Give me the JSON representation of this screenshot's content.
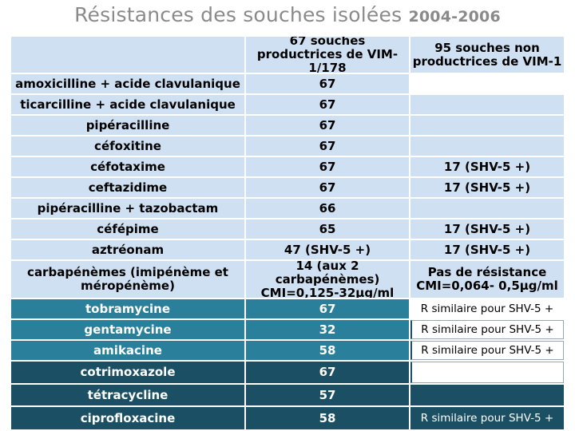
{
  "title": "Résistances des souches isolées",
  "title_years": "2004-2006",
  "headers": {
    "col1": "67 souches productrices de VIM-1/178",
    "col2": "95 souches non productrices de VIM-1"
  },
  "rows": [
    {
      "antibiotic": "amoxicilline + acide clavulanique",
      "vim": "67",
      "non_vim": ""
    },
    {
      "antibiotic": "ticarcilline + acide clavulanique",
      "vim": "67",
      "non_vim": ""
    },
    {
      "antibiotic": "pipéracilline",
      "vim": "67",
      "non_vim": ""
    },
    {
      "antibiotic": "céfoxitine",
      "vim": "67",
      "non_vim": ""
    },
    {
      "antibiotic": "céfotaxime",
      "vim": "67",
      "non_vim": "17 (SHV-5 +)"
    },
    {
      "antibiotic": "ceftazidime",
      "vim": "67",
      "non_vim": "17 (SHV-5 +)"
    },
    {
      "antibiotic": "pipéracilline + tazobactam",
      "vim": "66",
      "non_vim": ""
    },
    {
      "antibiotic": "céfépime",
      "vim": "65",
      "non_vim": "17 (SHV-5 +)"
    },
    {
      "antibiotic": "aztréonam",
      "vim": "47 (SHV-5 +)",
      "non_vim": "17 (SHV-5 +)"
    },
    {
      "antibiotic": "carbapénèmes (imipénème et méropénème)",
      "vim": "14 (aux 2 carbapénèmes) CMI=0,125-32µg/ml",
      "non_vim": "Pas de résistance CMI=0,064- 0,5µg/ml"
    },
    {
      "antibiotic": "tobramycine",
      "vim": "67",
      "non_vim": "R similaire pour SHV-5 +"
    },
    {
      "antibiotic": "gentamycine",
      "vim": "32",
      "non_vim": "R similaire pour SHV-5 +"
    },
    {
      "antibiotic": "amikacine",
      "vim": "58",
      "non_vim": "R similaire pour SHV-5 +"
    },
    {
      "antibiotic": "cotrimoxazole",
      "vim": "67",
      "non_vim": ""
    },
    {
      "antibiotic": "tétracycline",
      "vim": "57",
      "non_vim": ""
    },
    {
      "antibiotic": "ciprofloxacine",
      "vim": "58",
      "non_vim": "R similaire pour SHV-5 +"
    }
  ],
  "colors": {
    "header": "#cfe0f2",
    "light_rows": "#cfe0f2",
    "aminoside_rows": "#2a7f9a",
    "dark_rows": "#1b4f63",
    "title": "#8a8a8a"
  }
}
